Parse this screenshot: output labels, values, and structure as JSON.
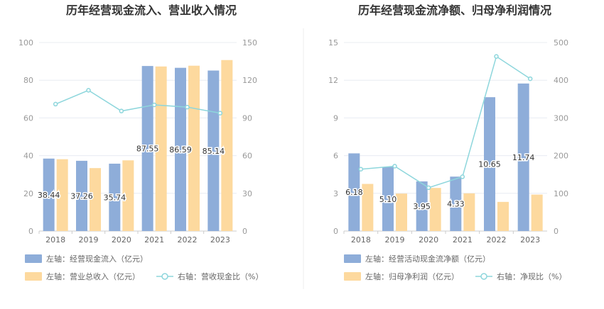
{
  "colors": {
    "left_bar": "#8eadd9",
    "right_bar": "#fdd99e",
    "line": "#8dd6dc"
  },
  "chart_data": [
    {
      "type": "bar",
      "title": "历年经营现金流入、营业收入情况",
      "categories": [
        "2018",
        "2019",
        "2020",
        "2021",
        "2022",
        "2023"
      ],
      "left_axis": {
        "min": 0,
        "max": 100,
        "ticks": [
          "0",
          "20",
          "40",
          "60",
          "80",
          "100"
        ]
      },
      "right_axis": {
        "min": 0,
        "max": 150,
        "ticks": [
          "0",
          "30",
          "60",
          "90",
          "120",
          "150"
        ]
      },
      "series": [
        {
          "name": "左轴：经营现金流入（亿元）",
          "axis": "left",
          "kind": "bar",
          "values": [
            38.44,
            37.26,
            35.74,
            87.55,
            86.59,
            85.14
          ],
          "labels": [
            "38.44",
            "37.26",
            "35.74",
            "87.55",
            "86.59",
            "85.14"
          ]
        },
        {
          "name": "左轴：营业总收入（亿元）",
          "axis": "left",
          "kind": "bar",
          "values": [
            38.1,
            33.4,
            37.5,
            87.3,
            87.7,
            90.7
          ]
        },
        {
          "name": "右轴：营收现金比（%）",
          "axis": "right",
          "kind": "line",
          "values": [
            101,
            112,
            95.5,
            100.4,
            98.6,
            93.8
          ]
        }
      ],
      "legend_placement": "bottom"
    },
    {
      "type": "bar",
      "title": "历年经营现金流净额、归母净利润情况",
      "categories": [
        "2018",
        "2019",
        "2020",
        "2021",
        "2022",
        "2023"
      ],
      "left_axis": {
        "min": 0,
        "max": 15,
        "ticks": [
          "0",
          "3",
          "6",
          "9",
          "12",
          "15"
        ]
      },
      "right_axis": {
        "min": 0,
        "max": 500,
        "ticks": [
          "0",
          "100",
          "200",
          "300",
          "400",
          "500"
        ]
      },
      "series": [
        {
          "name": "左轴：经营活动现金流净额（亿元）",
          "axis": "left",
          "kind": "bar",
          "values": [
            6.18,
            5.1,
            3.95,
            4.33,
            10.65,
            11.74
          ],
          "labels": [
            "6.18",
            "5.10",
            "3.95",
            "4.33",
            "10.65",
            "11.74"
          ]
        },
        {
          "name": "左轴：归母净利润（亿元）",
          "axis": "left",
          "kind": "bar",
          "values": [
            3.75,
            2.98,
            3.43,
            3.0,
            2.32,
            2.9
          ]
        },
        {
          "name": "右轴：净现比（%）",
          "axis": "right",
          "kind": "line",
          "values": [
            164,
            172,
            115,
            144,
            463,
            404
          ]
        }
      ],
      "legend_placement": "bottom"
    }
  ]
}
